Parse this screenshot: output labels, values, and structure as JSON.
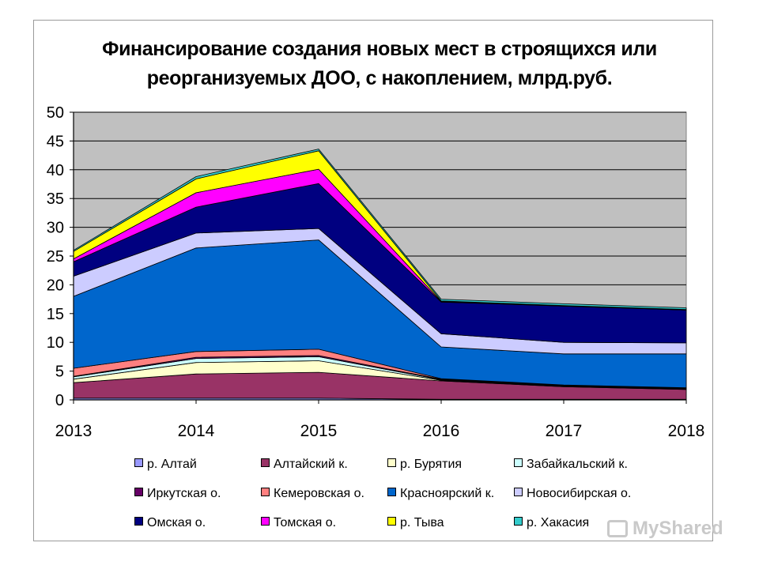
{
  "chart_data": {
    "type": "area",
    "stacked": true,
    "title": "Финансирование создания новых мест в строящихся или реорганизуемых ДОО, с накоплением, млрд.руб.",
    "title_lines": [
      "Финансирование создания новых мест в строящихся или",
      "реорганизуемых ДОО, с накоплением, млрд.руб."
    ],
    "categories": [
      "2013",
      "2014",
      "2015",
      "2016",
      "2017",
      "2018"
    ],
    "ylim": [
      0,
      50
    ],
    "yticks": [
      "0",
      "5",
      "10",
      "15",
      "20",
      "25",
      "30",
      "35",
      "40",
      "45",
      "50"
    ],
    "grid": true,
    "legend_position": "bottom",
    "series": [
      {
        "name": "р. Алтай",
        "color": "#9999ff",
        "values": [
          0.3,
          0.3,
          0.3,
          0.1,
          0.1,
          0.1
        ]
      },
      {
        "name": "Алтайский к.",
        "color": "#993366",
        "values": [
          2.7,
          4.2,
          4.5,
          3.2,
          2.2,
          1.7
        ]
      },
      {
        "name": "р. Бурятия",
        "color": "#ffffcc",
        "values": [
          0.6,
          2.0,
          2.0,
          0.1,
          0.1,
          0.1
        ]
      },
      {
        "name": "Забайкальский к.",
        "color": "#ccffff",
        "values": [
          0.4,
          0.7,
          0.7,
          0.1,
          0.1,
          0.1
        ]
      },
      {
        "name": "Иркутская о.",
        "color": "#660066",
        "values": [
          0.1,
          0.2,
          0.2,
          0.1,
          0.1,
          0.1
        ]
      },
      {
        "name": "Кемеровская о.",
        "color": "#ff8080",
        "values": [
          1.4,
          1.0,
          1.1,
          0.1,
          0.0,
          0.0
        ]
      },
      {
        "name": "Красноярский к.",
        "color": "#0066cc",
        "values": [
          12.5,
          18.0,
          19.0,
          5.5,
          5.4,
          5.9
        ]
      },
      {
        "name": "Новосибирская о.",
        "color": "#ccccff",
        "values": [
          3.5,
          2.6,
          2.0,
          2.3,
          2.0,
          1.9
        ]
      },
      {
        "name": "Омская о.",
        "color": "#000080",
        "values": [
          2.5,
          4.5,
          7.8,
          5.5,
          6.3,
          5.7
        ]
      },
      {
        "name": "Томская о.",
        "color": "#ff00ff",
        "values": [
          0.5,
          2.5,
          2.5,
          0.1,
          0.0,
          0.0
        ]
      },
      {
        "name": "р. Тыва",
        "color": "#ffff00",
        "values": [
          1.3,
          2.4,
          3.2,
          0.1,
          0.1,
          0.1
        ]
      },
      {
        "name": "р. Хакасия",
        "color": "#33cccc",
        "values": [
          0.2,
          0.4,
          0.3,
          0.3,
          0.3,
          0.3
        ]
      }
    ]
  },
  "watermark": {
    "text": "MyShared"
  }
}
